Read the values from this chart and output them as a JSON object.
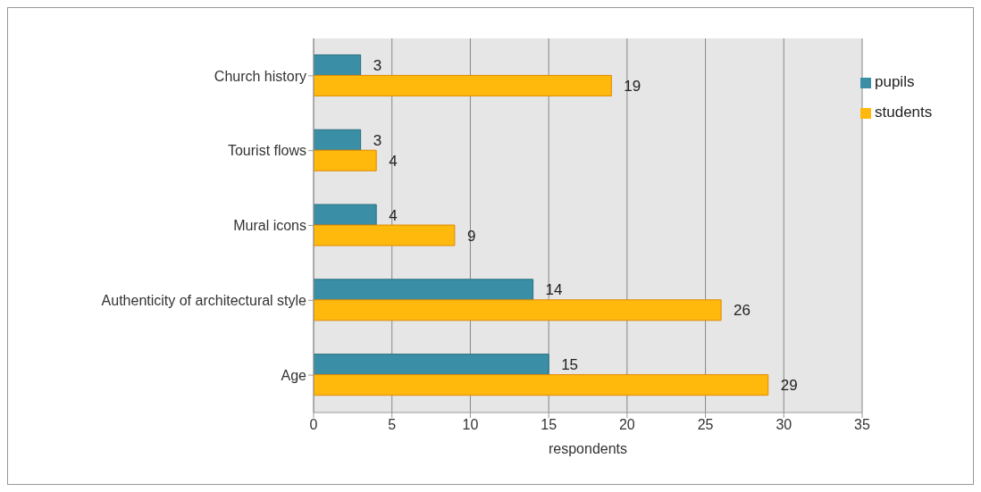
{
  "chart_data": {
    "type": "bar",
    "orientation": "horizontal",
    "xlabel": "respondents",
    "categories": [
      "Church history",
      "Tourist flows",
      "Mural icons",
      "Authenticity of architectural style",
      "Age"
    ],
    "series": [
      {
        "name": "pupils",
        "color": "#3a8ea5",
        "values": [
          3,
          3,
          4,
          14,
          15
        ]
      },
      {
        "name": "students",
        "color": "#ffb80c",
        "values": [
          19,
          4,
          9,
          26,
          29
        ]
      }
    ],
    "xlim": [
      0,
      35
    ],
    "xticks": [
      0,
      5,
      10,
      15,
      20,
      25,
      30,
      35
    ],
    "grid": "x",
    "legend": "top right",
    "data_labels": true
  }
}
